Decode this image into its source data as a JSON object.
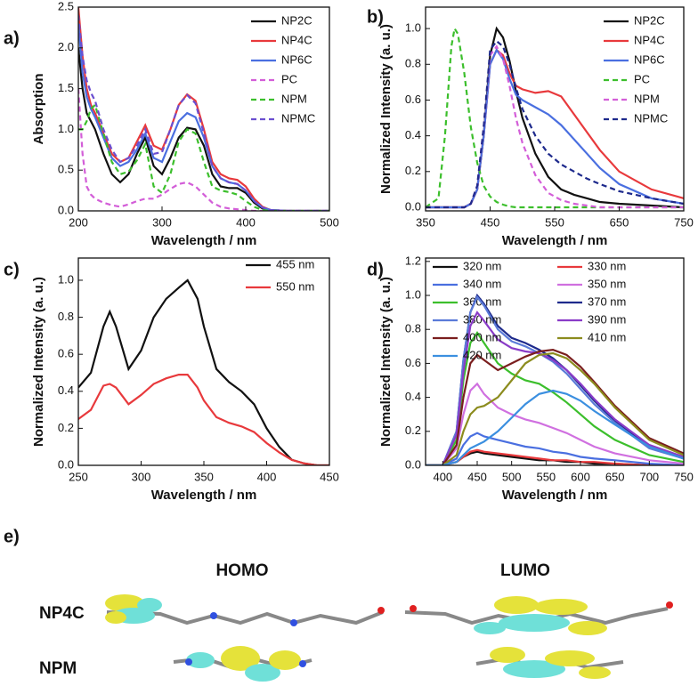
{
  "chart_data": [
    {
      "type": "line",
      "label": "a)",
      "x_label": "Wavelength / nm",
      "y_label": "Absorption",
      "xlim": [
        200,
        500
      ],
      "xticks": [
        200,
        300,
        400,
        500
      ],
      "ylim": [
        0,
        2.5
      ],
      "yticks": [
        {
          "value": 0,
          "label": "0.0"
        },
        0.5,
        {
          "value": 1,
          "label": "1.0"
        },
        1.5,
        {
          "value": 2,
          "label": "2.0"
        },
        2.5
      ],
      "legend": "upper right",
      "x": [
        200,
        205,
        210,
        215,
        220,
        230,
        240,
        250,
        260,
        270,
        280,
        290,
        300,
        310,
        320,
        330,
        340,
        350,
        360,
        370,
        380,
        390,
        400,
        410,
        420,
        430,
        450,
        500
      ],
      "series": [
        {
          "name": "NP2C",
          "color": "#111111",
          "dashed": false,
          "values": [
            2.0,
            1.5,
            1.2,
            1.1,
            1.0,
            0.7,
            0.45,
            0.35,
            0.45,
            0.7,
            0.9,
            0.55,
            0.45,
            0.65,
            0.9,
            1.02,
            1.0,
            0.8,
            0.45,
            0.3,
            0.28,
            0.28,
            0.22,
            0.1,
            0.03,
            0.01,
            0,
            0
          ]
        },
        {
          "name": "NP4C",
          "color": "#e8393c",
          "dashed": false,
          "values": [
            2.5,
            1.9,
            1.5,
            1.3,
            1.2,
            0.95,
            0.7,
            0.6,
            0.65,
            0.85,
            1.05,
            0.8,
            0.75,
            1.0,
            1.3,
            1.43,
            1.35,
            1.0,
            0.6,
            0.45,
            0.4,
            0.38,
            0.3,
            0.15,
            0.05,
            0.01,
            0,
            0
          ]
        },
        {
          "name": "NP6C",
          "color": "#4a6fe0",
          "dashed": false,
          "values": [
            2.3,
            1.7,
            1.4,
            1.25,
            1.15,
            0.9,
            0.65,
            0.55,
            0.6,
            0.75,
            0.95,
            0.65,
            0.6,
            0.85,
            1.1,
            1.2,
            1.15,
            0.9,
            0.55,
            0.4,
            0.35,
            0.33,
            0.25,
            0.12,
            0.04,
            0.01,
            0,
            0
          ]
        },
        {
          "name": "PC",
          "color": "#d35ed8",
          "dashed": true,
          "values": [
            1.5,
            0.7,
            0.3,
            0.2,
            0.15,
            0.1,
            0.07,
            0.05,
            0.08,
            0.12,
            0.15,
            0.15,
            0.2,
            0.27,
            0.33,
            0.35,
            0.3,
            0.2,
            0.1,
            0.05,
            0.03,
            0.02,
            0.01,
            0,
            0,
            0,
            0,
            0
          ]
        },
        {
          "name": "NPM",
          "color": "#3cbf2c",
          "dashed": true,
          "values": [
            1.0,
            1.0,
            1.1,
            1.25,
            1.3,
            0.95,
            0.6,
            0.45,
            0.48,
            0.62,
            0.82,
            0.3,
            0.22,
            0.45,
            0.85,
            1.0,
            0.95,
            0.6,
            0.3,
            0.25,
            0.23,
            0.2,
            0.12,
            0.05,
            0.01,
            0,
            0,
            0
          ]
        },
        {
          "name": "NPMC",
          "color": "#6b4fd0",
          "dashed": true,
          "values": [
            2.4,
            1.9,
            1.6,
            1.45,
            1.35,
            1.0,
            0.75,
            0.6,
            0.65,
            0.8,
            1.0,
            0.7,
            0.72,
            1.0,
            1.3,
            1.42,
            1.32,
            0.95,
            0.55,
            0.4,
            0.35,
            0.33,
            0.25,
            0.12,
            0.04,
            0.01,
            0,
            0
          ]
        }
      ]
    },
    {
      "type": "line",
      "label": "b)",
      "x_label": "Wavelength / nm",
      "y_label": "Normalized Intensity (a. u.)",
      "xlim": [
        350,
        750
      ],
      "xticks": [
        350,
        450,
        550,
        650,
        750
      ],
      "ylim": [
        -0.02,
        1.12
      ],
      "yticks": [
        {
          "value": 0,
          "label": "0.0"
        },
        0.2,
        0.4,
        0.6,
        0.8,
        {
          "value": 1,
          "label": "1.0"
        }
      ],
      "legend": "upper right",
      "x": [
        350,
        370,
        380,
        390,
        395,
        400,
        410,
        420,
        430,
        440,
        450,
        460,
        470,
        480,
        490,
        500,
        520,
        540,
        560,
        580,
        600,
        620,
        650,
        700,
        750
      ],
      "series": [
        {
          "name": "NP2C",
          "color": "#111111",
          "dashed": false,
          "values": [
            0,
            0,
            0,
            0,
            0,
            0,
            0,
            0.02,
            0.1,
            0.4,
            0.85,
            1.0,
            0.95,
            0.82,
            0.65,
            0.5,
            0.3,
            0.17,
            0.1,
            0.07,
            0.05,
            0.03,
            0.02,
            0.01,
            0
          ]
        },
        {
          "name": "NP4C",
          "color": "#e8393c",
          "dashed": false,
          "values": [
            0,
            0,
            0,
            0,
            0,
            0,
            0,
            0.02,
            0.1,
            0.4,
            0.8,
            0.88,
            0.85,
            0.75,
            0.68,
            0.66,
            0.64,
            0.65,
            0.62,
            0.52,
            0.42,
            0.32,
            0.2,
            0.1,
            0.05
          ]
        },
        {
          "name": "NP6C",
          "color": "#4a6fe0",
          "dashed": false,
          "values": [
            0,
            0,
            0,
            0,
            0,
            0,
            0,
            0.02,
            0.1,
            0.4,
            0.8,
            0.88,
            0.83,
            0.72,
            0.63,
            0.6,
            0.56,
            0.52,
            0.46,
            0.38,
            0.3,
            0.22,
            0.13,
            0.05,
            0.02
          ]
        },
        {
          "name": "PC",
          "color": "#3cbf2c",
          "dashed": true,
          "values": [
            0,
            0.05,
            0.4,
            0.9,
            1.0,
            0.97,
            0.75,
            0.45,
            0.25,
            0.12,
            0.06,
            0.03,
            0.015,
            0.005,
            0,
            0,
            0,
            0,
            0,
            0,
            0,
            0,
            0,
            0,
            0
          ]
        },
        {
          "name": "NPM",
          "color": "#d35ed8",
          "dashed": true,
          "values": [
            0,
            0,
            0,
            0,
            0,
            0,
            0,
            0.02,
            0.12,
            0.45,
            0.85,
            0.9,
            0.83,
            0.68,
            0.5,
            0.36,
            0.18,
            0.08,
            0.04,
            0.02,
            0.01,
            0,
            0,
            0,
            0
          ]
        },
        {
          "name": "NPMC",
          "color": "#1e2a8c",
          "dashed": true,
          "values": [
            0,
            0,
            0,
            0,
            0,
            0,
            0,
            0.02,
            0.12,
            0.45,
            0.88,
            0.93,
            0.9,
            0.8,
            0.67,
            0.55,
            0.4,
            0.3,
            0.24,
            0.2,
            0.16,
            0.13,
            0.09,
            0.05,
            0.02
          ]
        }
      ]
    },
    {
      "type": "line",
      "label": "c)",
      "x_label": "Wavelength / nm",
      "y_label": "Normalized Intensity (a. u.)",
      "xlim": [
        250,
        450
      ],
      "xticks": [
        250,
        300,
        350,
        400,
        450
      ],
      "ylim": [
        0,
        1.12
      ],
      "yticks": [
        {
          "value": 0,
          "label": "0.0"
        },
        0.2,
        0.4,
        0.6,
        0.8,
        {
          "value": 1,
          "label": "1.0"
        }
      ],
      "legend": "upper right",
      "x": [
        250,
        260,
        270,
        275,
        280,
        290,
        300,
        310,
        320,
        330,
        337,
        345,
        350,
        360,
        370,
        380,
        390,
        400,
        410,
        420,
        430,
        440,
        450
      ],
      "series": [
        {
          "name": "455 nm",
          "color": "#111111",
          "dashed": false,
          "values": [
            0.42,
            0.5,
            0.75,
            0.83,
            0.75,
            0.52,
            0.62,
            0.8,
            0.9,
            0.96,
            1.0,
            0.9,
            0.75,
            0.52,
            0.45,
            0.4,
            0.33,
            0.2,
            0.1,
            0.03,
            0.01,
            0,
            0
          ]
        },
        {
          "name": "550 nm",
          "color": "#e8393c",
          "dashed": false,
          "values": [
            0.25,
            0.3,
            0.43,
            0.44,
            0.42,
            0.33,
            0.38,
            0.44,
            0.47,
            0.49,
            0.49,
            0.42,
            0.35,
            0.26,
            0.23,
            0.21,
            0.18,
            0.12,
            0.07,
            0.03,
            0.01,
            0,
            0
          ]
        }
      ]
    },
    {
      "type": "line",
      "label": "d)",
      "x_label": "Wavelength / nm",
      "y_label": "Normalized Intensity (a. u.)",
      "xlim": [
        375,
        750
      ],
      "xticks": [
        400,
        450,
        500,
        550,
        600,
        650,
        700,
        750
      ],
      "ylim": [
        0,
        1.22
      ],
      "yticks": [
        {
          "value": 0,
          "label": "0.0"
        },
        0.2,
        0.4,
        0.6,
        0.8,
        {
          "value": 1,
          "label": "1.0"
        },
        1.2
      ],
      "legend": "upper left",
      "legend_columns": 2,
      "x": [
        375,
        400,
        420,
        430,
        440,
        450,
        460,
        480,
        500,
        520,
        540,
        560,
        580,
        600,
        620,
        650,
        700,
        750
      ],
      "series": [
        {
          "name": "320 nm",
          "color": "#111111",
          "dashed": false,
          "values": [
            0,
            0,
            0.02,
            0.05,
            0.07,
            0.08,
            0.07,
            0.06,
            0.05,
            0.04,
            0.03,
            0.03,
            0.02,
            0.02,
            0.01,
            0.01,
            0,
            0
          ]
        },
        {
          "name": "330 nm",
          "color": "#e8393c",
          "dashed": false,
          "values": [
            0,
            0,
            0.02,
            0.05,
            0.08,
            0.09,
            0.08,
            0.07,
            0.06,
            0.05,
            0.04,
            0.03,
            0.03,
            0.02,
            0.02,
            0.01,
            0,
            0
          ]
        },
        {
          "name": "340 nm",
          "color": "#4a6fe0",
          "dashed": false,
          "values": [
            0,
            0,
            0.04,
            0.12,
            0.17,
            0.19,
            0.17,
            0.15,
            0.13,
            0.11,
            0.1,
            0.08,
            0.07,
            0.05,
            0.04,
            0.03,
            0.01,
            0
          ]
        },
        {
          "name": "350 nm",
          "color": "#d070e0",
          "dashed": false,
          "values": [
            0,
            0,
            0.1,
            0.3,
            0.44,
            0.48,
            0.42,
            0.34,
            0.3,
            0.27,
            0.25,
            0.22,
            0.19,
            0.15,
            0.11,
            0.07,
            0.03,
            0.01
          ]
        },
        {
          "name": "360 nm",
          "color": "#3cbf2c",
          "dashed": false,
          "values": [
            0,
            0,
            0.15,
            0.5,
            0.72,
            0.78,
            0.72,
            0.6,
            0.54,
            0.5,
            0.48,
            0.43,
            0.37,
            0.3,
            0.23,
            0.15,
            0.06,
            0.02
          ]
        },
        {
          "name": "370 nm",
          "color": "#1e2a8c",
          "dashed": false,
          "values": [
            0,
            0,
            0.2,
            0.62,
            0.9,
            1.0,
            0.95,
            0.82,
            0.75,
            0.72,
            0.68,
            0.63,
            0.56,
            0.47,
            0.38,
            0.26,
            0.11,
            0.04
          ]
        },
        {
          "name": "380 nm",
          "color": "#5b7bd8",
          "dashed": false,
          "values": [
            0,
            0,
            0.2,
            0.62,
            0.9,
            0.99,
            0.94,
            0.8,
            0.73,
            0.7,
            0.66,
            0.61,
            0.54,
            0.45,
            0.36,
            0.25,
            0.1,
            0.04
          ]
        },
        {
          "name": "390 nm",
          "color": "#8a3cc8",
          "dashed": false,
          "values": [
            0,
            0,
            0.18,
            0.55,
            0.82,
            0.9,
            0.85,
            0.74,
            0.69,
            0.67,
            0.66,
            0.62,
            0.56,
            0.48,
            0.39,
            0.27,
            0.12,
            0.05
          ]
        },
        {
          "name": "400 nm",
          "color": "#7a1e1e",
          "dashed": false,
          "values": [
            0,
            0,
            0.12,
            0.4,
            0.6,
            0.65,
            0.62,
            0.56,
            0.6,
            0.64,
            0.67,
            0.68,
            0.65,
            0.58,
            0.49,
            0.35,
            0.16,
            0.07
          ]
        },
        {
          "name": "410 nm",
          "color": "#8c8c1e",
          "dashed": false,
          "values": [
            0,
            0,
            0.06,
            0.2,
            0.3,
            0.34,
            0.35,
            0.4,
            0.5,
            0.6,
            0.65,
            0.66,
            0.63,
            0.56,
            0.48,
            0.34,
            0.15,
            0.06
          ]
        },
        {
          "name": "420 nm",
          "color": "#3b8fe0",
          "dashed": false,
          "values": [
            0,
            0,
            0.02,
            0.06,
            0.1,
            0.12,
            0.14,
            0.2,
            0.28,
            0.36,
            0.42,
            0.44,
            0.42,
            0.38,
            0.32,
            0.24,
            0.11,
            0.04
          ]
        }
      ]
    }
  ],
  "panel_e": {
    "label": "e)",
    "columns": [
      "HOMO",
      "LUMO"
    ],
    "rows": [
      "NP4C",
      "NPM"
    ]
  }
}
